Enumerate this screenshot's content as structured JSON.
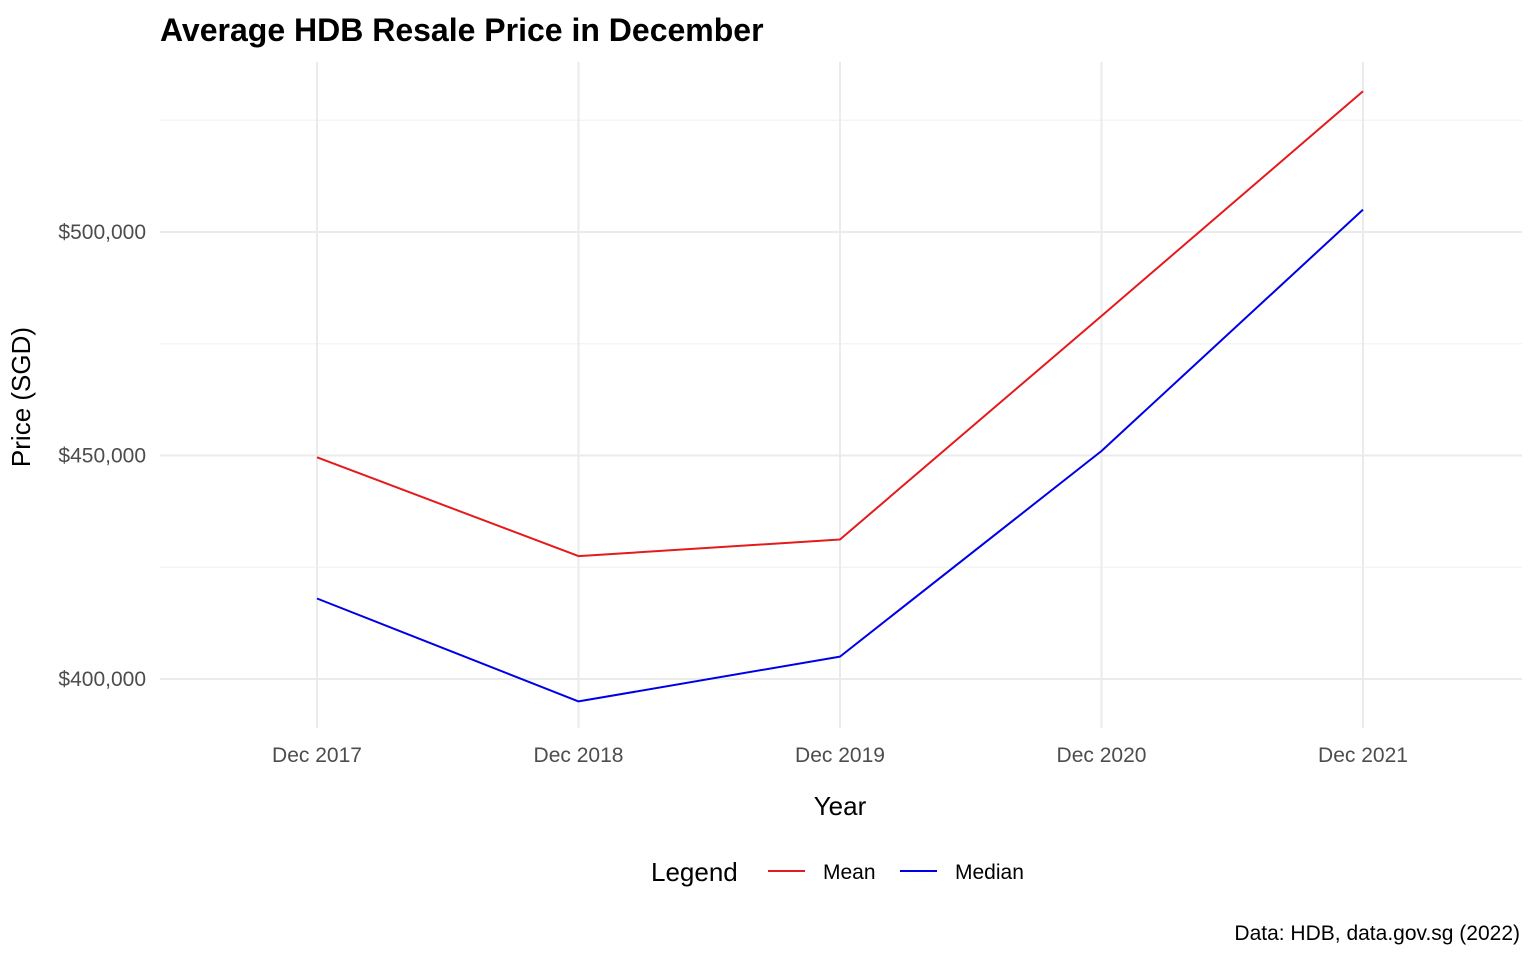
{
  "chart_data": {
    "type": "line",
    "title": "Average HDB Resale Price in December",
    "xlabel": "Year",
    "ylabel": "Price (SGD)",
    "caption": "Data: HDB, data.gov.sg (2022)",
    "categories": [
      "Dec 2017",
      "Dec 2018",
      "Dec 2019",
      "Dec 2020",
      "Dec 2021"
    ],
    "y_ticks": [
      400000,
      450000,
      500000
    ],
    "y_tick_labels": [
      "$400,000",
      "$450,000",
      "$500,000"
    ],
    "ylim": [
      387000,
      538000
    ],
    "grid": true,
    "legend": {
      "title": "Legend",
      "position": "bottom"
    },
    "series": [
      {
        "name": "Mean",
        "color": "#e41a1c",
        "values": [
          449600,
          427500,
          431200,
          481200,
          531500
        ]
      },
      {
        "name": "Median",
        "color": "#0000e6",
        "values": [
          418000,
          395000,
          405000,
          451000,
          505000
        ]
      }
    ]
  }
}
